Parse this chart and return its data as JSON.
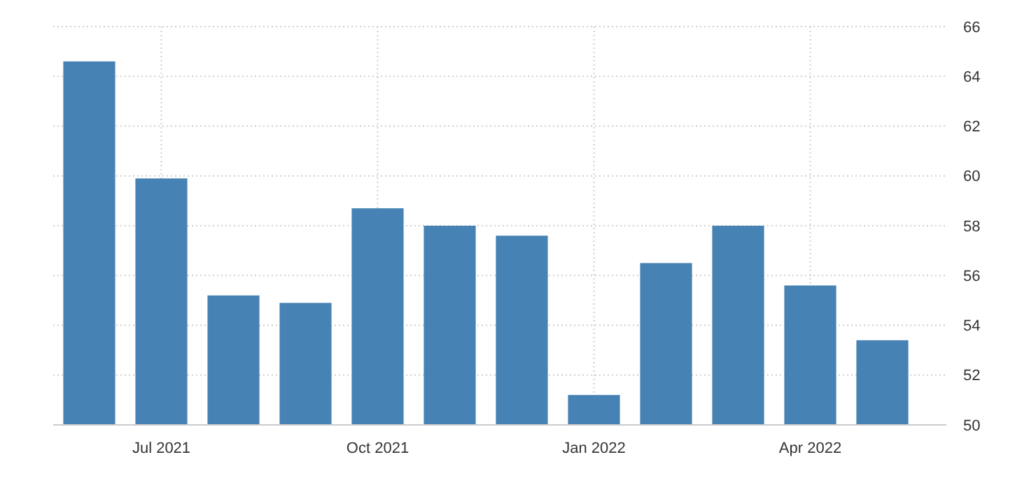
{
  "chart_data": {
    "type": "bar",
    "categories": [
      null,
      "Jul 2021",
      null,
      null,
      "Oct 2021",
      null,
      null,
      "Jan 2022",
      null,
      null,
      "Apr 2022",
      null
    ],
    "values": [
      64.6,
      59.9,
      55.2,
      54.9,
      58.7,
      58.0,
      57.6,
      51.2,
      56.5,
      58.0,
      55.6,
      53.4
    ],
    "color": "#4682b4",
    "ylim": [
      50,
      66
    ],
    "yticks": [
      50,
      52,
      54,
      56,
      58,
      60,
      62,
      64,
      66
    ],
    "grid": true
  }
}
